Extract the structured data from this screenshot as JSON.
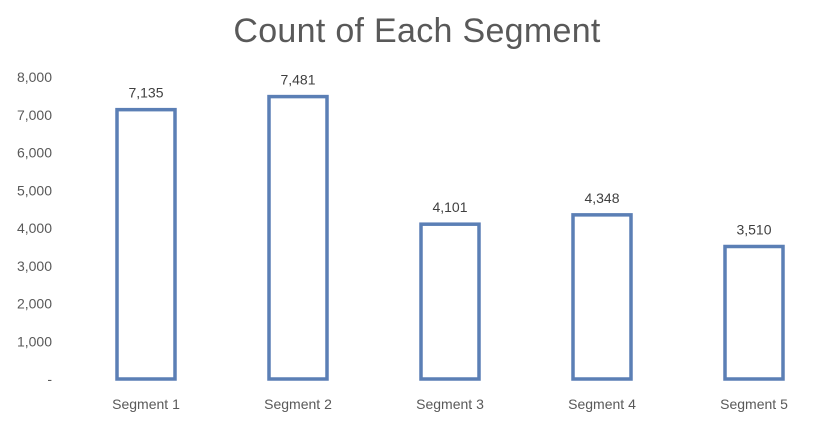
{
  "chart_data": {
    "type": "bar",
    "title": "Count of Each Segment",
    "categories": [
      "Segment 1",
      "Segment 2",
      "Segment 3",
      "Segment 4",
      "Segment 5"
    ],
    "values": [
      7135,
      7481,
      4101,
      4348,
      3510
    ],
    "value_labels": [
      "7,135",
      "7,481",
      "4,101",
      "4,348",
      "3,510"
    ],
    "yticks": [
      "-",
      "1,000",
      "2,000",
      "3,000",
      "4,000",
      "5,000",
      "6,000",
      "7,000",
      "8,000"
    ],
    "ylim": [
      0,
      8000
    ],
    "xlabel": "",
    "ylabel": "",
    "grid": false,
    "bar_style": "outline",
    "colors": {
      "bar_stroke": "#5b7fb5",
      "bar_fill": "#ffffff",
      "text": "#595959"
    }
  }
}
